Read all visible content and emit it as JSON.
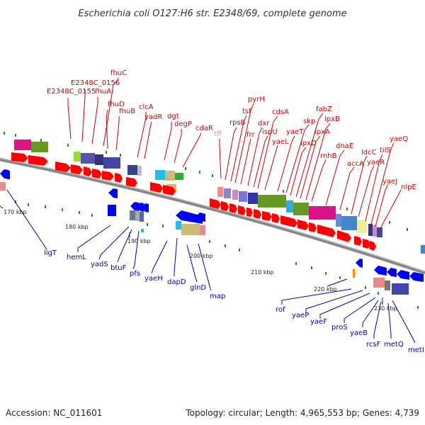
{
  "title": "Escherichia coli O127:H6 str. E2348/69, complete genome",
  "footer": {
    "accession": "Accession: NC_011601",
    "topology": "Topology: circular; Length: 4,965,553 bp; Genes: 4,739"
  },
  "colors": {
    "forward_label": "#cc0000",
    "reverse_label": "#0000aa",
    "pseudo_label": "#ff88bb",
    "forward_arrow": "#ff0000",
    "reverse_arrow": "#0000ff",
    "backbone": "#808080",
    "tick": "#228822"
  },
  "ticks": [
    "170 kbp",
    "180 kbp",
    "190 kbp",
    "200 kbp",
    "210 kbp",
    "220 kbp",
    "230 kbp"
  ],
  "forward_genes": [
    "E2348C_0155",
    "E2348C_0156",
    "fhuA",
    "fhuC",
    "fhuD",
    "fhuB",
    "clcA",
    "yadR",
    "dgt",
    "degP",
    "cdaR",
    "tff",
    "rpsB",
    "tsf",
    "pyrH",
    "frr",
    "dxr",
    "ispU",
    "cdsA",
    "yaeL",
    "yaeT",
    "skp",
    "lpxD",
    "fabZ",
    "lpxA",
    "lpxB",
    "rnhB",
    "dnaE",
    "accA",
    "ldcC",
    "yaeR",
    "tilS",
    "yaeQ",
    "yaeJ",
    "nlpE"
  ],
  "reverse_genes": [
    "ligT",
    "hemL",
    "yadS",
    "btuF",
    "pfs",
    "yaeH",
    "dapD",
    "glnD",
    "map",
    "rof",
    "yaeP",
    "yaeF",
    "proS",
    "yaeB",
    "rcsF",
    "metQ",
    "metI"
  ]
}
